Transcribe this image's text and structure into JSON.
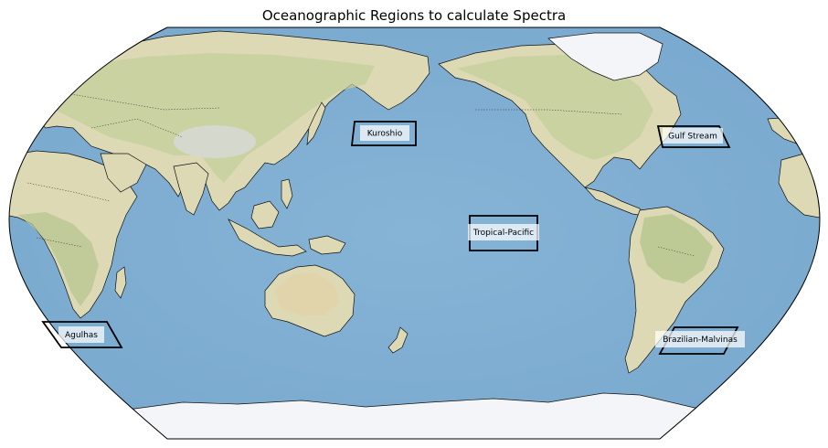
{
  "title": "Oceanographic Regions to calculate Spectra",
  "regions": [
    {
      "name": "Kuroshio"
    },
    {
      "name": "Gulf Stream"
    },
    {
      "name": "Tropical-Pacific"
    },
    {
      "name": "Agulhas"
    },
    {
      "name": "Brazilian-Malvinas"
    }
  ],
  "colors": {
    "ocean": "#86b4d6",
    "land": "#d8d5ae",
    "vegetation": "#b9c896",
    "ice": "#f3f5f8",
    "outline": "#000000"
  },
  "projection": "Robinson, Pacific-centered"
}
